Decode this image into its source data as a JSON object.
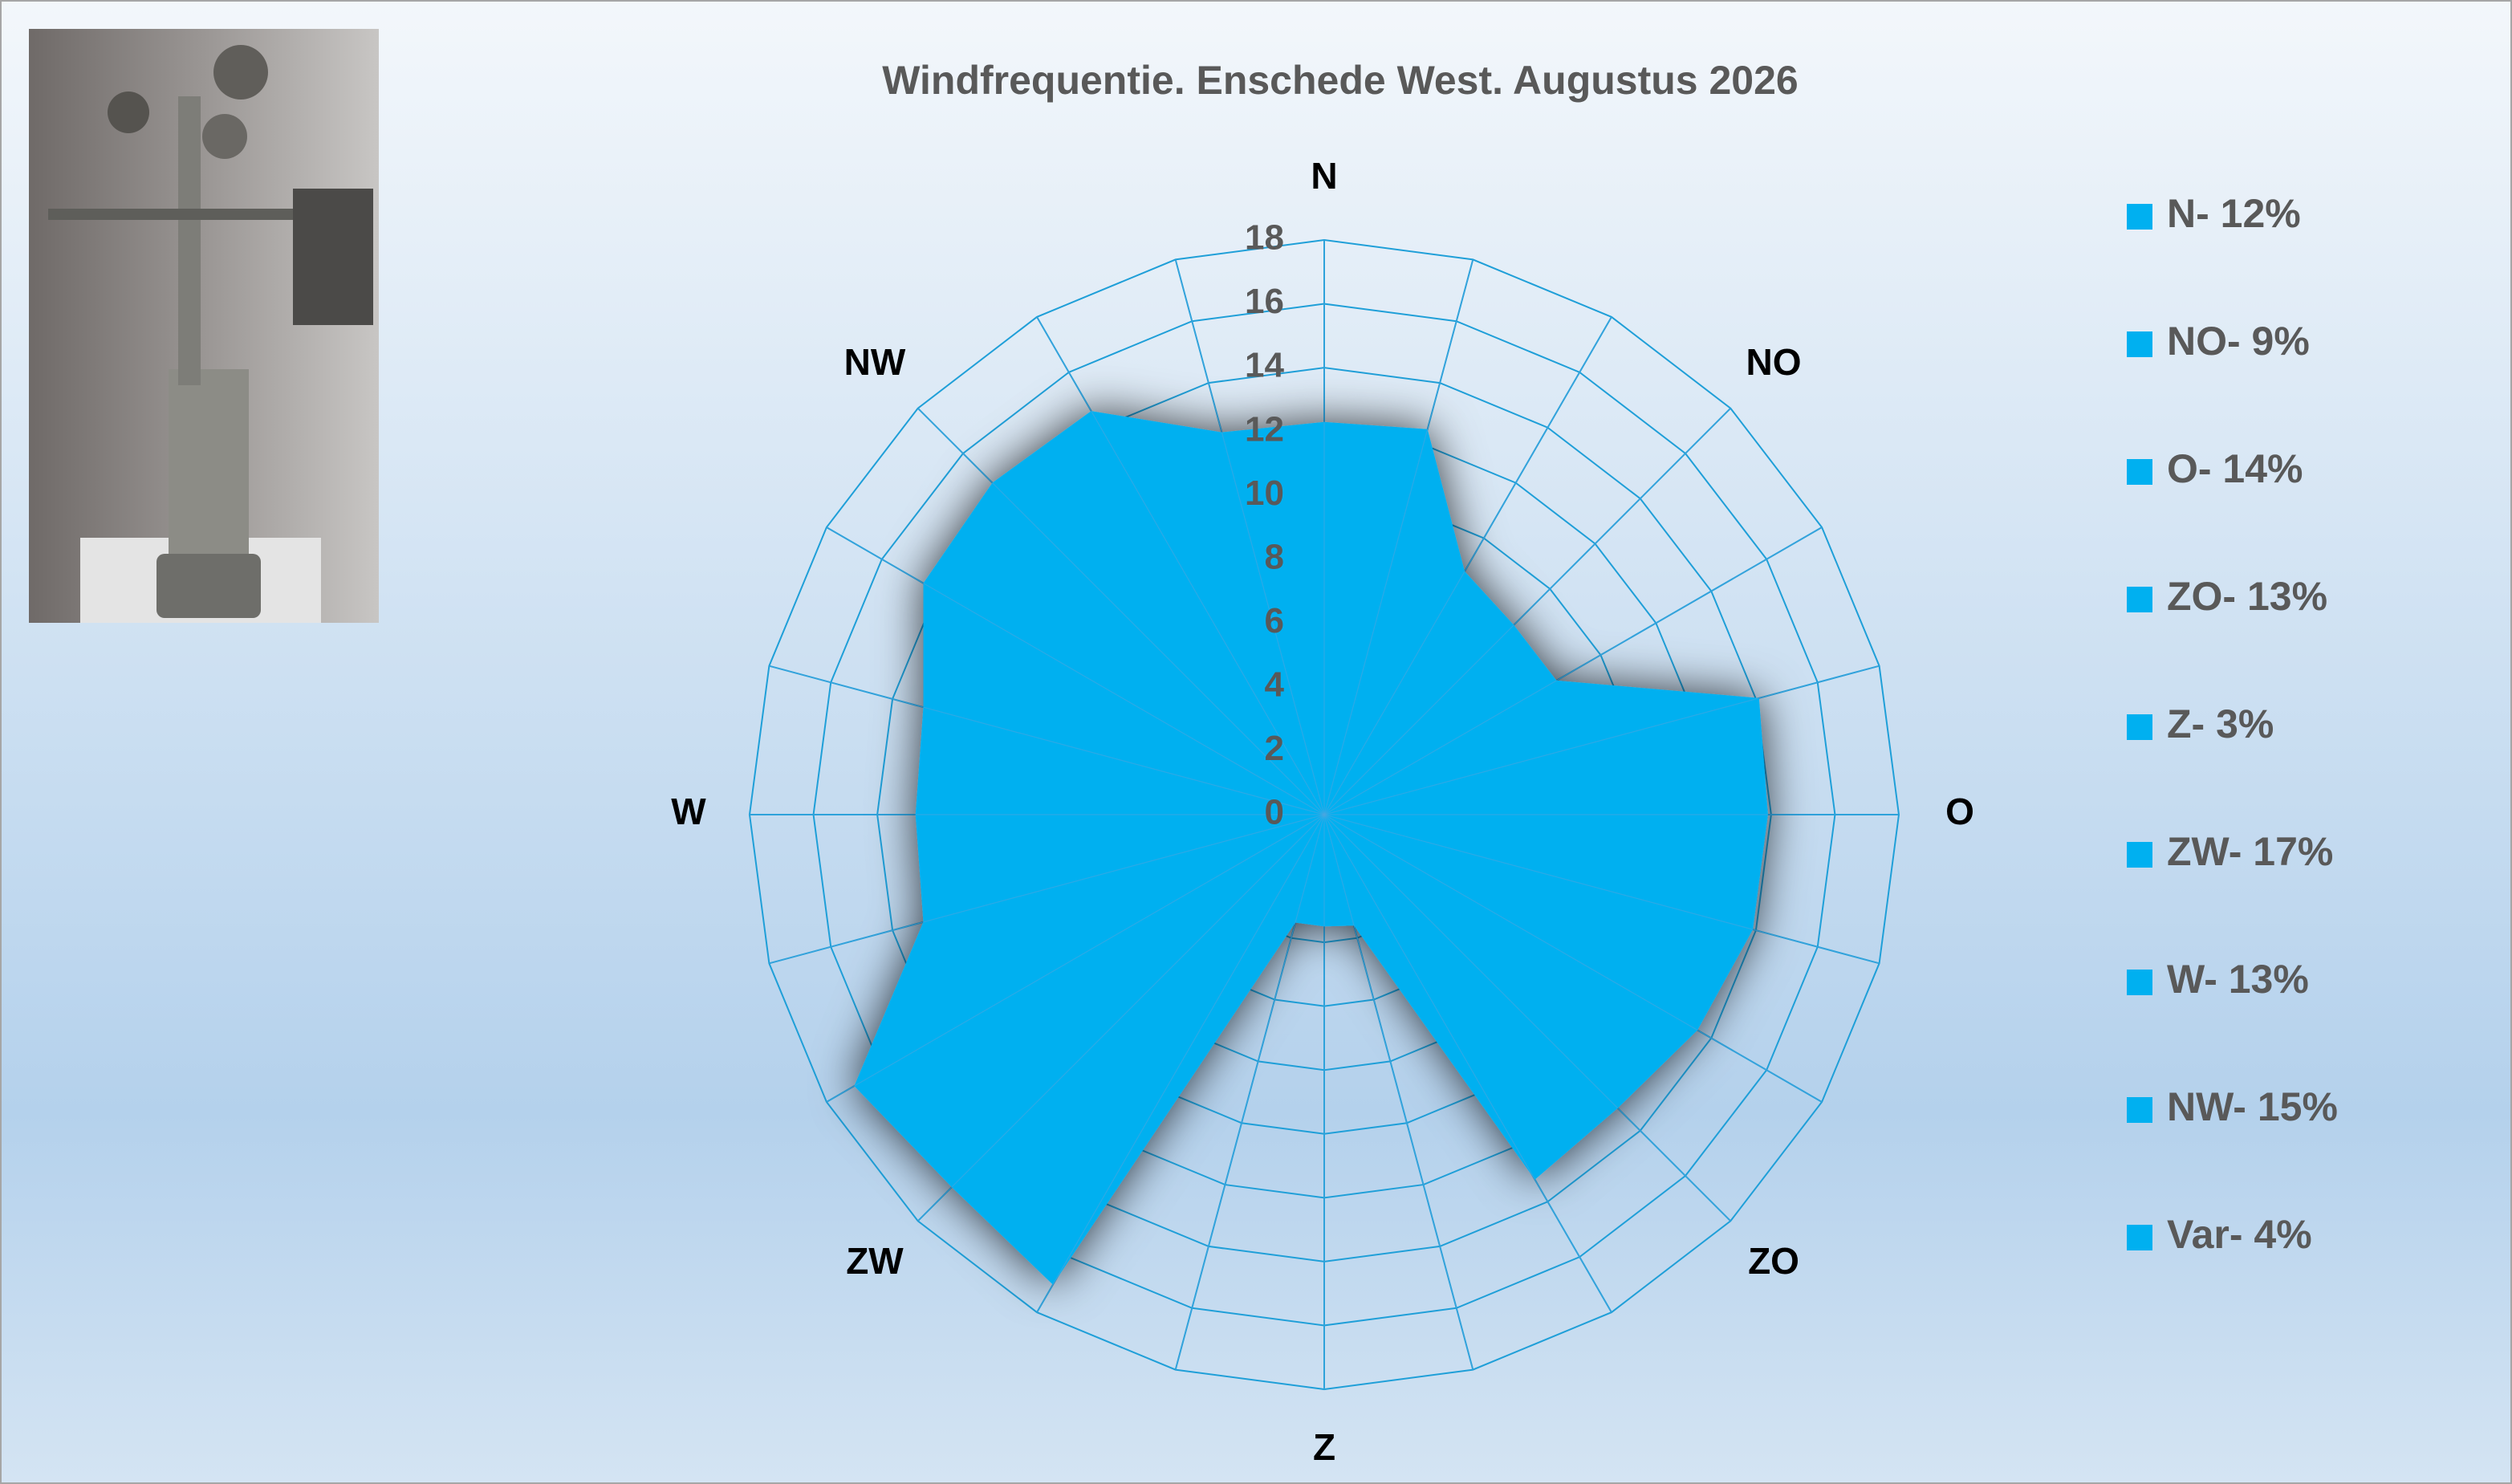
{
  "chart_data": {
    "type": "radar",
    "title": "Windfrequentie. Enschede West. Augustus 2026",
    "categories": [
      "N",
      null,
      null,
      "NO",
      null,
      null,
      "O",
      null,
      null,
      "ZO",
      null,
      null,
      "Z",
      null,
      null,
      "ZW",
      null,
      null,
      "W",
      null,
      null,
      "NW",
      null,
      null
    ],
    "values": [
      12.3,
      12.5,
      8.8,
      8.4,
      8.4,
      14.1,
      13.9,
      13.9,
      13.5,
      13,
      13.2,
      3.6,
      3.5,
      3.5,
      17,
      16.5,
      17,
      13,
      12.8,
      13,
      14.5,
      14.7,
      14.6,
      12.4
    ],
    "color": "#00b0f0",
    "rlim": [
      0,
      18
    ],
    "rticks": [
      0,
      2,
      4,
      6,
      8,
      10,
      12,
      14,
      16,
      18
    ],
    "grid": true,
    "legend_items": [
      "N- 12%",
      "NO- 9%",
      "O- 14%",
      "ZO- 13%",
      "Z- 3%",
      "ZW- 17%",
      "W- 13%",
      "NW- 15%",
      "Var- 4%"
    ]
  }
}
